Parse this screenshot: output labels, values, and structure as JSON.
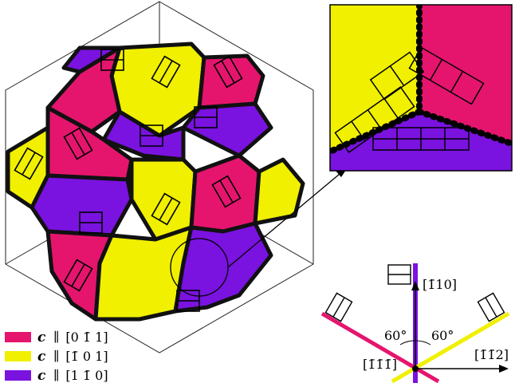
{
  "colors": {
    "c_011": "#e5156e",
    "c_101": "#f0f000",
    "c_110": "#7a12e0",
    "boundary": "#000000",
    "frame": "#000000"
  },
  "legend": [
    {
      "vector": "c",
      "relation": "∥",
      "direction": "[0 1̄ 1]",
      "color": "#e5156e"
    },
    {
      "vector": "c",
      "relation": "∥",
      "direction": "[1̄ 0 1]",
      "color": "#f0f000"
    },
    {
      "vector": "c",
      "relation": "∥",
      "direction": "[1 1̄ 0]",
      "color": "#7a12e0"
    }
  ],
  "schematic": {
    "up_direction": "[1̄10]",
    "right_direction": "[1̄1̄2]",
    "center_direction": "[1̄1̄1̄]",
    "angle_left": "60°",
    "angle_right": "60°"
  }
}
